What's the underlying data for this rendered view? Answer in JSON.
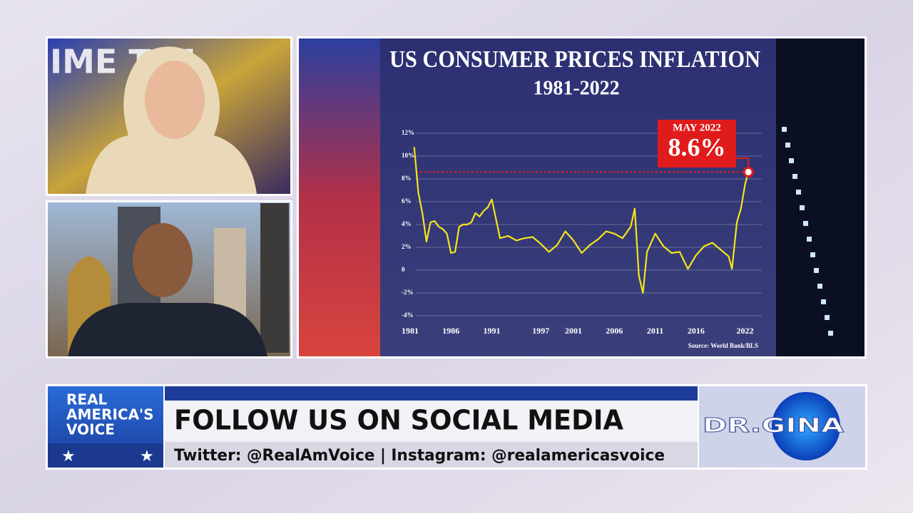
{
  "studio_backdrop_text": "IME TIM",
  "chart": {
    "type": "line",
    "title": "US CONSUMER PRICES INFLATION",
    "subtitle": "1981-2022",
    "x": [
      1981.5,
      1982,
      1982.5,
      1983,
      1983.5,
      1984,
      1984.5,
      1985,
      1985.5,
      1986,
      1986.5,
      1987,
      1987.5,
      1988,
      1988.5,
      1989,
      1989.5,
      1990,
      1990.5,
      1991,
      1991.5,
      1992,
      1993,
      1994,
      1995,
      1996,
      1997,
      1998,
      1999,
      2000,
      2001,
      2002,
      2003,
      2004,
      2005,
      2006,
      2007,
      2008,
      2008.5,
      2009,
      2009.5,
      2010,
      2011,
      2012,
      2013,
      2014,
      2015,
      2016,
      2017,
      2018,
      2019,
      2020,
      2020.4,
      2021,
      2021.5,
      2022,
      2022.4
    ],
    "series": [
      {
        "color": "#f3e51c",
        "values": [
          10.8,
          6.8,
          5,
          2.5,
          4.2,
          4.3,
          3.8,
          3.6,
          3.2,
          1.5,
          1.6,
          3.8,
          4,
          4,
          4.2,
          5,
          4.7,
          5.2,
          5.5,
          6.2,
          4.5,
          2.8,
          3,
          2.6,
          2.8,
          2.9,
          2.3,
          1.6,
          2.2,
          3.4,
          2.6,
          1.5,
          2.2,
          2.7,
          3.4,
          3.2,
          2.8,
          3.8,
          5.4,
          -0.5,
          -2,
          1.6,
          3.2,
          2.1,
          1.5,
          1.6,
          0.1,
          1.3,
          2.1,
          2.4,
          1.8,
          1.2,
          0.1,
          4.2,
          5.4,
          7.5,
          8.6
        ]
      }
    ],
    "xlim": [
      1981,
      2023
    ],
    "xticks": [
      1981,
      1986,
      1991,
      1997,
      2001,
      2006,
      2011,
      2016,
      2022
    ],
    "ylim": [
      -4,
      12
    ],
    "yticks": [
      {
        "value": 12,
        "label": "12%"
      },
      {
        "value": 10,
        "label": "10%"
      },
      {
        "value": 8,
        "label": "8%"
      },
      {
        "value": 6,
        "label": "6%"
      },
      {
        "value": 4,
        "label": "4%"
      },
      {
        "value": 2,
        "label": "2%"
      },
      0,
      {
        "value": -2,
        "label": "-2%"
      },
      {
        "value": -4,
        "label": "-4%"
      }
    ],
    "grid": true,
    "highlight": {
      "label": "MAY 2022",
      "value": 8.6,
      "value_label": "8.6%",
      "color": "#e01b1b"
    },
    "source": "Source: World Bank/BLS"
  },
  "lower_third": {
    "logo": [
      "REAL",
      "AMERICA'S",
      "VOICE"
    ],
    "headline": "FOLLOW US ON SOCIAL MEDIA",
    "social": "Twitter: @RealAmVoice | Instagram: @realamericasvoice",
    "show_logo": "DR.GINA"
  }
}
